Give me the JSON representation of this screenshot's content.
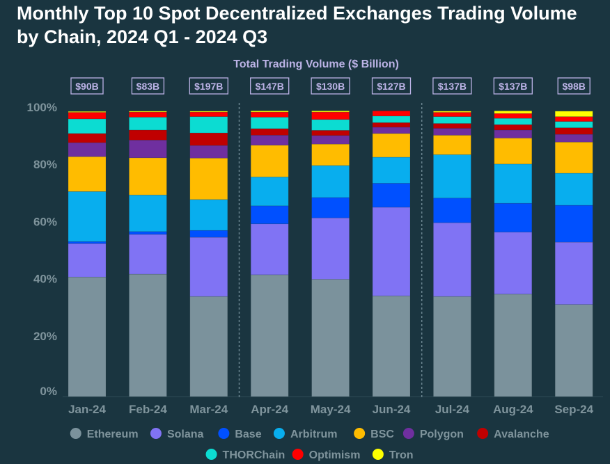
{
  "chart_data": {
    "type": "bar",
    "stacked": "percent",
    "title": "Monthly Top 10 Spot Decentralized Exchanges Trading Volume by Chain, 2024 Q1 - 2024 Q3",
    "subtitle": "Total Trading Volume ($ Billion)",
    "categories": [
      "Jan-24",
      "Feb-24",
      "Mar-24",
      "Apr-24",
      "May-24",
      "Jun-24",
      "Jul-24",
      "Aug-24",
      "Sep-24"
    ],
    "totals": [
      "$90B",
      "$83B",
      "$197B",
      "$147B",
      "$130B",
      "$127B",
      "$137B",
      "$137B",
      "$98B"
    ],
    "yticks": [
      "0%",
      "20%",
      "40%",
      "60%",
      "80%",
      "100%"
    ],
    "ylim": [
      0,
      100
    ],
    "quarter_separators_after": [
      "Mar-24",
      "Jun-24"
    ],
    "legend_position": "bottom",
    "series": [
      {
        "name": "Ethereum",
        "color": "#7b929c",
        "values": [
          41.8,
          42.8,
          35.0,
          42.6,
          41.0,
          35.2,
          35.0,
          35.8,
          32.2
        ]
      },
      {
        "name": "Solana",
        "color": "#8073f4",
        "values": [
          11.7,
          13.9,
          20.7,
          17.8,
          21.5,
          31.0,
          25.8,
          21.7,
          21.8
        ]
      },
      {
        "name": "Base",
        "color": "#0050ff",
        "values": [
          0.7,
          1.0,
          2.4,
          6.3,
          7.1,
          8.4,
          8.6,
          10.1,
          12.9
        ]
      },
      {
        "name": "Arbitrum",
        "color": "#08aeee",
        "values": [
          17.5,
          12.8,
          10.8,
          10.1,
          11.2,
          9.1,
          15.2,
          13.7,
          11.2
        ]
      },
      {
        "name": "BSC",
        "color": "#ffbc00",
        "values": [
          12.2,
          13.0,
          14.5,
          11.1,
          7.5,
          8.3,
          6.8,
          9.1,
          10.9
        ]
      },
      {
        "name": "Polygon",
        "color": "#6f2f9f",
        "values": [
          4.9,
          6.2,
          4.4,
          3.5,
          3.0,
          2.2,
          2.4,
          2.8,
          2.7
        ]
      },
      {
        "name": "Avalanche",
        "color": "#c00000",
        "values": [
          3.2,
          3.5,
          4.4,
          2.3,
          1.8,
          1.6,
          1.7,
          1.9,
          2.3
        ]
      },
      {
        "name": "THORChain",
        "color": "#0cdcd2",
        "values": [
          5.1,
          4.5,
          5.7,
          4.0,
          3.8,
          2.3,
          2.4,
          2.2,
          2.2
        ]
      },
      {
        "name": "Optimism",
        "color": "#ff0000",
        "values": [
          2.3,
          1.8,
          1.6,
          1.8,
          2.6,
          1.8,
          1.5,
          1.7,
          1.7
        ]
      },
      {
        "name": "Tron",
        "color": "#ffff00",
        "values": [
          0.3,
          0.3,
          0.3,
          0.4,
          0.4,
          0.0,
          0.4,
          0.9,
          1.9
        ]
      }
    ]
  }
}
